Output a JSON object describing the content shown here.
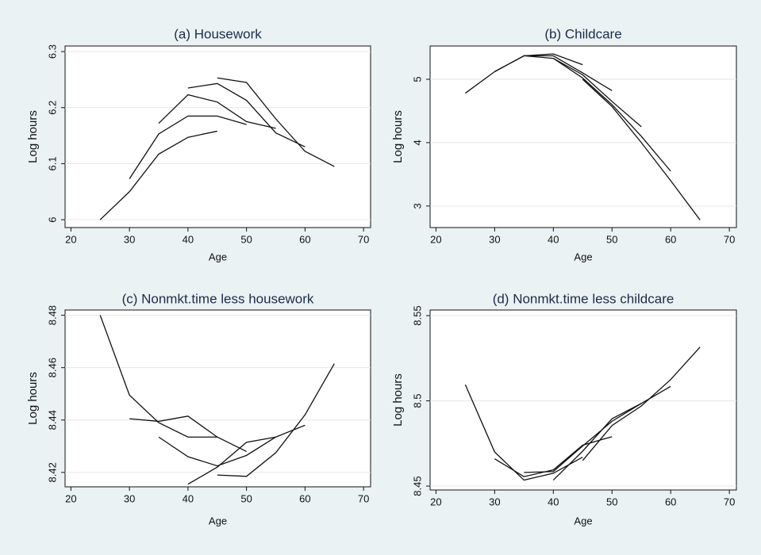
{
  "chart_data": [
    {
      "type": "line",
      "title": "(a) Housework",
      "xlabel": "Age",
      "ylabel": "Log hours",
      "x": [
        25,
        30,
        35,
        40,
        45,
        50,
        55,
        60,
        65
      ],
      "series": [
        {
          "color": "#111111",
          "values": [
            6.0,
            6.05,
            6.117,
            6.147,
            6.158,
            null,
            null,
            null,
            null
          ]
        },
        {
          "color": "#111111",
          "values": [
            null,
            6.073,
            6.153,
            6.185,
            6.185,
            6.17,
            null,
            null,
            null
          ]
        },
        {
          "color": "#111111",
          "values": [
            null,
            null,
            6.172,
            6.223,
            6.21,
            6.175,
            6.163,
            null,
            null
          ]
        },
        {
          "color": "#111111",
          "values": [
            null,
            null,
            null,
            6.235,
            6.243,
            6.213,
            6.155,
            6.13,
            null
          ]
        },
        {
          "color": "#111111",
          "values": [
            null,
            null,
            null,
            null,
            6.253,
            6.245,
            6.18,
            6.122,
            6.095
          ]
        }
      ],
      "xlim": [
        19,
        71.2
      ],
      "xticks": [
        20,
        30,
        40,
        50,
        60,
        70
      ],
      "ylim": [
        5.986,
        6.31
      ],
      "yticks": [
        6,
        6.1,
        6.2,
        6.3
      ],
      "grid": true
    },
    {
      "type": "line",
      "title": "(b) Childcare",
      "xlabel": "Age",
      "ylabel": "Log hours",
      "x": [
        25,
        30,
        35,
        40,
        45,
        50,
        55,
        60,
        65
      ],
      "series": [
        {
          "color": "#111111",
          "values": [
            4.78,
            5.12,
            5.37,
            5.4,
            5.23,
            null,
            null,
            null,
            null
          ]
        },
        {
          "color": "#111111",
          "values": [
            null,
            5.12,
            5.37,
            5.37,
            5.1,
            4.82,
            null,
            null,
            null
          ]
        },
        {
          "color": "#111111",
          "values": [
            null,
            null,
            5.37,
            5.33,
            5.07,
            4.65,
            4.25,
            null,
            null
          ]
        },
        {
          "color": "#111111",
          "values": [
            null,
            null,
            null,
            5.33,
            5.02,
            4.6,
            4.1,
            3.55,
            null
          ]
        },
        {
          "color": "#111111",
          "values": [
            null,
            null,
            null,
            null,
            5.0,
            4.57,
            4.0,
            3.4,
            2.78
          ]
        }
      ],
      "xlim": [
        19,
        71.2
      ],
      "xticks": [
        20,
        30,
        40,
        50,
        60,
        70
      ],
      "ylim": [
        2.66,
        5.525
      ],
      "yticks": [
        3,
        4,
        5
      ],
      "grid": true
    },
    {
      "type": "line",
      "title": "(c) Nonmkt.time less housework",
      "xlabel": "Age",
      "ylabel": "Log hours",
      "x": [
        25,
        30,
        35,
        40,
        45,
        50,
        55,
        60,
        65
      ],
      "series": [
        {
          "color": "#111111",
          "values": [
            8.48,
            8.4495,
            8.439,
            8.4335,
            8.4335,
            null,
            null,
            null,
            null
          ]
        },
        {
          "color": "#111111",
          "values": [
            null,
            8.4405,
            8.4395,
            8.4415,
            8.4335,
            8.428,
            null,
            null,
            null
          ]
        },
        {
          "color": "#111111",
          "values": [
            null,
            null,
            8.4335,
            8.426,
            8.4225,
            8.4265,
            8.4335,
            null,
            null
          ]
        },
        {
          "color": "#111111",
          "values": [
            null,
            null,
            null,
            8.4155,
            8.422,
            8.4315,
            8.4335,
            8.438,
            null
          ]
        },
        {
          "color": "#111111",
          "values": [
            null,
            null,
            null,
            null,
            8.419,
            8.4185,
            8.4275,
            8.442,
            8.4615
          ]
        }
      ],
      "xlim": [
        19,
        71.2
      ],
      "xticks": [
        20,
        30,
        40,
        50,
        60,
        70
      ],
      "ylim": [
        8.4145,
        8.482
      ],
      "yticks": [
        8.42,
        8.44,
        8.46,
        8.48
      ],
      "grid": true
    },
    {
      "type": "line",
      "title": "(d) Nonmkt.time less childcare",
      "xlabel": "Age",
      "ylabel": "Log hours",
      "x": [
        25,
        30,
        35,
        40,
        45,
        50,
        55,
        60,
        65
      ],
      "series": [
        {
          "color": "#111111",
          "values": [
            8.5095,
            8.47,
            8.4535,
            8.4575,
            8.467,
            null,
            null,
            null,
            null
          ]
        },
        {
          "color": "#111111",
          "values": [
            null,
            8.466,
            8.4555,
            8.4595,
            8.474,
            8.479,
            null,
            null,
            null
          ]
        },
        {
          "color": "#111111",
          "values": [
            null,
            null,
            8.458,
            8.4585,
            8.4735,
            8.488,
            8.4985,
            null,
            null
          ]
        },
        {
          "color": "#111111",
          "values": [
            null,
            null,
            null,
            8.4535,
            8.4705,
            8.4895,
            8.4985,
            8.5085,
            null
          ]
        },
        {
          "color": "#111111",
          "values": [
            null,
            null,
            null,
            null,
            8.465,
            8.4855,
            8.497,
            8.5125,
            8.5315
          ]
        }
      ],
      "xlim": [
        19,
        71.2
      ],
      "xticks": [
        20,
        30,
        40,
        50,
        60,
        70
      ],
      "ylim": [
        8.4477,
        8.5533
      ],
      "yticks": [
        8.45,
        8.5,
        8.55
      ],
      "grid": true
    }
  ]
}
